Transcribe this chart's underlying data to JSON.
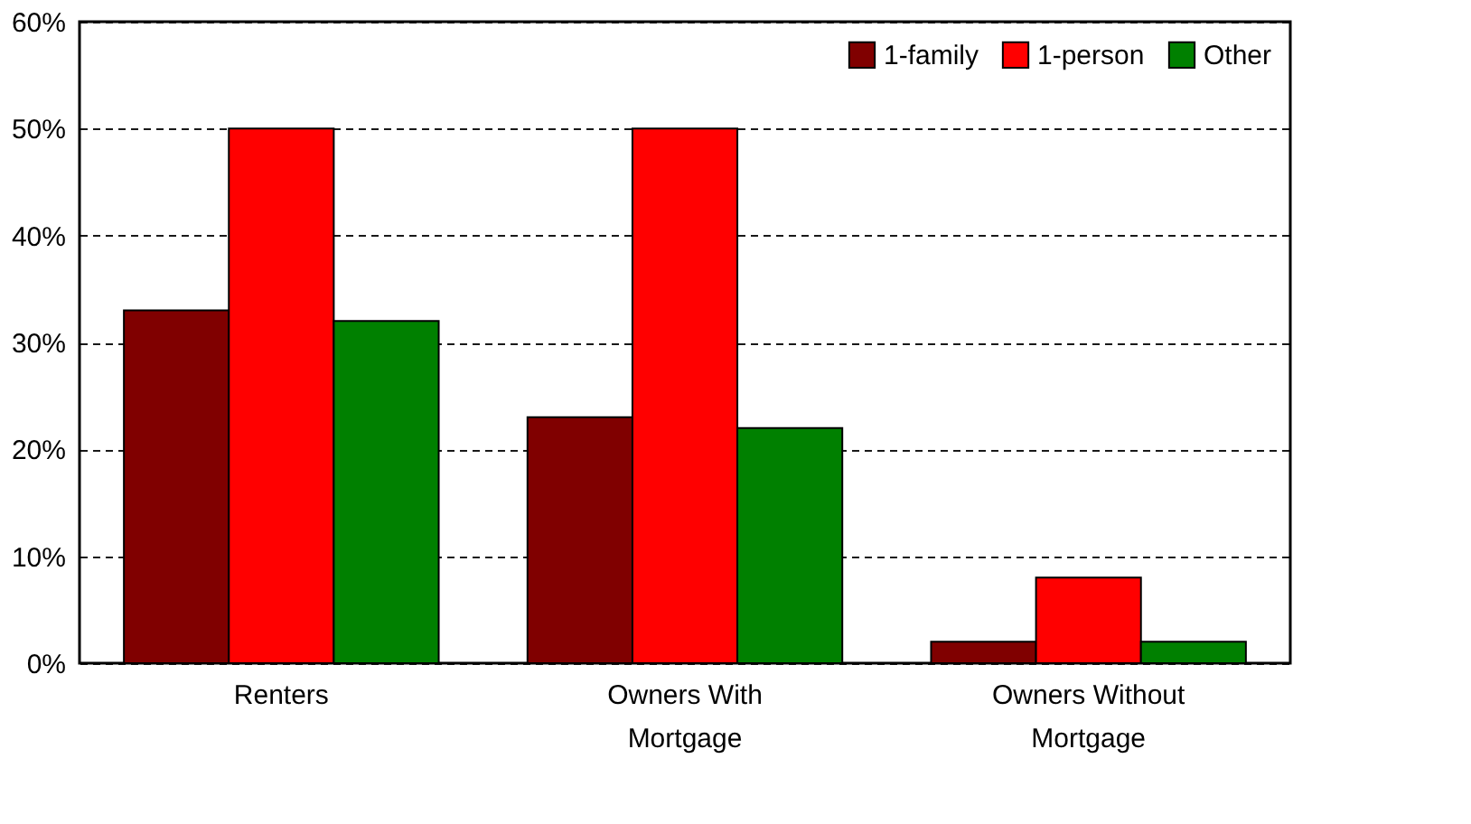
{
  "chart_data": {
    "type": "bar",
    "categories": [
      "Renters",
      "Owners With Mortgage",
      "Owners Without Mortgage"
    ],
    "series": [
      {
        "name": "1-family",
        "color": "#800000",
        "values": [
          33,
          23,
          2
        ]
      },
      {
        "name": "1-person",
        "color": "#ff0000",
        "values": [
          50,
          50,
          8
        ]
      },
      {
        "name": "Other",
        "color": "#008000",
        "values": [
          32,
          22,
          2
        ]
      }
    ],
    "ylim": [
      0,
      60
    ],
    "yticks": [
      {
        "value": 0,
        "label": "0%"
      },
      {
        "value": 10,
        "label": "10%"
      },
      {
        "value": 20,
        "label": "20%"
      },
      {
        "value": 30,
        "label": "30%"
      },
      {
        "value": 40,
        "label": "40%"
      },
      {
        "value": 50,
        "label": "50%"
      },
      {
        "value": 60,
        "label": "60%"
      }
    ],
    "grid": "y",
    "legend": "top right"
  }
}
